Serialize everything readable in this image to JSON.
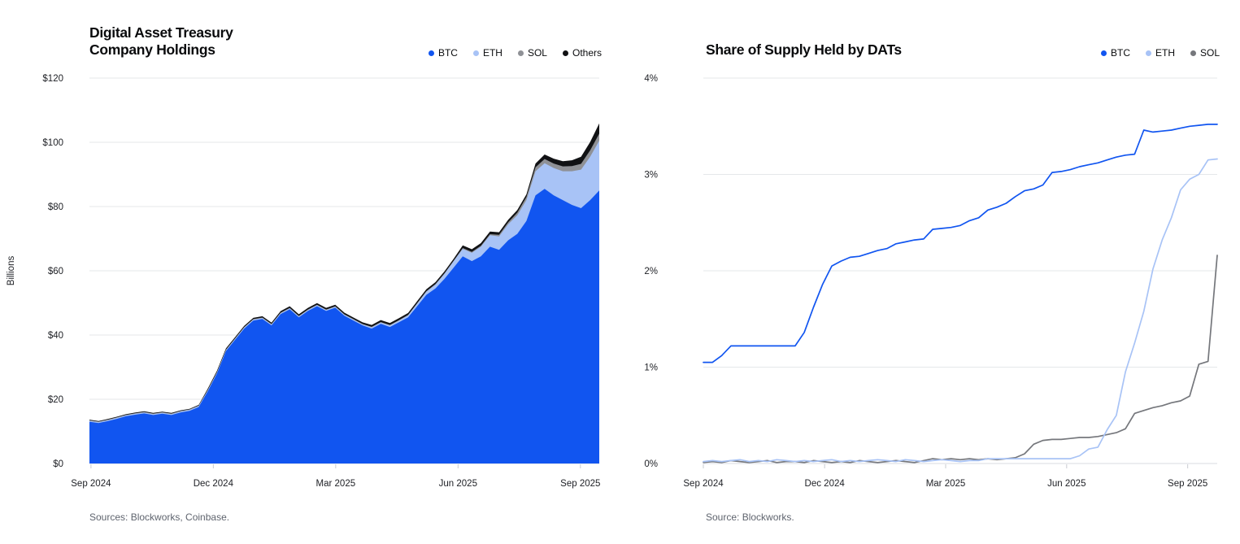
{
  "page": {
    "background": "#ffffff",
    "grid_color": "#e5e7ea",
    "axis_color": "#d8dbe0",
    "tick_color": "#c9ccd2"
  },
  "chart_data": [
    {
      "id": "dat-holdings",
      "type": "area",
      "stacked": true,
      "title_lines": [
        "Digital Asset Treasury",
        "Company Holdings"
      ],
      "ylabel": "Billions",
      "source": "Sources: Blockworks, Coinbase.",
      "legend_position": "top-right",
      "grid": true,
      "x_tick_labels": [
        "Sep 2024",
        "Dec 2024",
        "Mar 2025",
        "Jun 2025",
        "Sep 2025"
      ],
      "y_tick_labels": [
        "$120",
        "$100",
        "$80",
        "$60",
        "$40",
        "$20",
        "$0"
      ],
      "y_tick_values": [
        120,
        100,
        80,
        60,
        40,
        20,
        0
      ],
      "ylim": [
        0,
        120
      ],
      "x_range": [
        "Sep 2024",
        "mid-Sep 2025"
      ],
      "series": [
        {
          "name": "BTC",
          "color": "#1155f0",
          "values": [
            13.0,
            12.6,
            13.2,
            13.9,
            14.7,
            15.2,
            15.6,
            15.1,
            15.5,
            15.1,
            15.9,
            16.4,
            17.6,
            22.5,
            28.0,
            35.0,
            38.5,
            42.0,
            44.5,
            45.0,
            43.0,
            46.5,
            48.0,
            45.5,
            47.5,
            49.0,
            47.5,
            48.5,
            46.0,
            44.5,
            43.0,
            42.0,
            43.5,
            42.5,
            44.0,
            45.5,
            49.0,
            52.5,
            54.5,
            57.5,
            61.0,
            64.5,
            63.0,
            64.5,
            67.5,
            66.5,
            69.5,
            71.5,
            75.5,
            83.5,
            85.5,
            83.5,
            82.0,
            80.5,
            79.5,
            82.0,
            85.0
          ]
        },
        {
          "name": "ETH",
          "color": "#a8c3f6",
          "values": [
            0.3,
            0.3,
            0.3,
            0.3,
            0.3,
            0.3,
            0.3,
            0.3,
            0.3,
            0.3,
            0.3,
            0.3,
            0.3,
            0.3,
            0.3,
            0.3,
            0.3,
            0.3,
            0.3,
            0.3,
            0.3,
            0.3,
            0.3,
            0.3,
            0.3,
            0.3,
            0.3,
            0.3,
            0.3,
            0.3,
            0.3,
            0.4,
            0.4,
            0.5,
            0.5,
            0.6,
            0.8,
            1.0,
            1.2,
            1.6,
            2.0,
            2.3,
            2.6,
            3.0,
            3.6,
            4.2,
            5.0,
            5.8,
            6.5,
            7.5,
            8.0,
            8.5,
            9.0,
            10.5,
            12.0,
            13.5,
            15.5
          ]
        },
        {
          "name": "SOL",
          "color": "#8f9196",
          "values": [
            0.15,
            0.15,
            0.15,
            0.15,
            0.15,
            0.15,
            0.15,
            0.15,
            0.15,
            0.15,
            0.15,
            0.15,
            0.15,
            0.15,
            0.15,
            0.15,
            0.15,
            0.15,
            0.15,
            0.15,
            0.15,
            0.15,
            0.15,
            0.15,
            0.15,
            0.15,
            0.15,
            0.15,
            0.15,
            0.15,
            0.15,
            0.15,
            0.15,
            0.15,
            0.15,
            0.15,
            0.15,
            0.15,
            0.15,
            0.15,
            0.15,
            0.3,
            0.3,
            0.3,
            0.3,
            0.5,
            0.6,
            0.8,
            1.0,
            1.2,
            1.3,
            1.4,
            1.5,
            1.6,
            1.8,
            2.0,
            2.2
          ]
        },
        {
          "name": "Others",
          "color": "#111214",
          "values": [
            0.2,
            0.2,
            0.2,
            0.2,
            0.2,
            0.2,
            0.2,
            0.2,
            0.2,
            0.2,
            0.2,
            0.2,
            0.2,
            0.4,
            0.4,
            0.4,
            0.4,
            0.4,
            0.4,
            0.4,
            0.4,
            0.5,
            0.5,
            0.5,
            0.5,
            0.5,
            0.5,
            0.5,
            0.5,
            0.5,
            0.5,
            0.6,
            0.6,
            0.6,
            0.6,
            0.6,
            0.6,
            0.6,
            0.6,
            0.6,
            0.6,
            0.8,
            0.8,
            0.8,
            0.8,
            0.8,
            0.8,
            0.8,
            0.8,
            1.2,
            1.4,
            1.5,
            1.6,
            1.8,
            2.2,
            2.6,
            3.2
          ]
        }
      ]
    },
    {
      "id": "supply-share",
      "type": "line",
      "stacked": false,
      "title_lines": [
        "Share of Supply Held by DATs"
      ],
      "source": "Source: Blockworks.",
      "legend_position": "top-right",
      "grid": true,
      "x_tick_labels": [
        "Sep 2024",
        "Dec 2024",
        "Mar 2025",
        "Jun 2025",
        "Sep 2025"
      ],
      "y_tick_labels": [
        "4%",
        "3%",
        "2%",
        "1%",
        "0%"
      ],
      "y_tick_values": [
        4,
        3,
        2,
        1,
        0
      ],
      "ylim": [
        0,
        4
      ],
      "x_range": [
        "Sep 2024",
        "mid-Sep 2025"
      ],
      "series": [
        {
          "name": "BTC",
          "color": "#1155f0",
          "values": [
            1.05,
            1.05,
            1.12,
            1.22,
            1.22,
            1.22,
            1.22,
            1.22,
            1.22,
            1.22,
            1.22,
            1.36,
            1.62,
            1.86,
            2.05,
            2.1,
            2.14,
            2.15,
            2.18,
            2.21,
            2.23,
            2.28,
            2.3,
            2.32,
            2.33,
            2.43,
            2.44,
            2.45,
            2.47,
            2.52,
            2.55,
            2.63,
            2.66,
            2.7,
            2.77,
            2.83,
            2.85,
            2.89,
            3.02,
            3.03,
            3.05,
            3.08,
            3.1,
            3.12,
            3.15,
            3.18,
            3.2,
            3.21,
            3.46,
            3.44,
            3.45,
            3.46,
            3.48,
            3.5,
            3.51,
            3.52,
            3.52
          ]
        },
        {
          "name": "ETH",
          "color": "#a8c3f6",
          "values": [
            0.02,
            0.03,
            0.02,
            0.03,
            0.04,
            0.02,
            0.03,
            0.02,
            0.04,
            0.03,
            0.02,
            0.03,
            0.02,
            0.03,
            0.04,
            0.02,
            0.03,
            0.02,
            0.03,
            0.04,
            0.03,
            0.02,
            0.04,
            0.03,
            0.02,
            0.03,
            0.04,
            0.03,
            0.02,
            0.03,
            0.03,
            0.05,
            0.05,
            0.05,
            0.05,
            0.05,
            0.05,
            0.05,
            0.05,
            0.05,
            0.05,
            0.08,
            0.15,
            0.17,
            0.35,
            0.5,
            0.95,
            1.25,
            1.58,
            2.02,
            2.32,
            2.55,
            2.84,
            2.95,
            3.0,
            3.15,
            3.16
          ]
        },
        {
          "name": "SOL",
          "color": "#75777c",
          "values": [
            0.01,
            0.02,
            0.01,
            0.03,
            0.02,
            0.01,
            0.02,
            0.03,
            0.01,
            0.02,
            0.02,
            0.01,
            0.03,
            0.02,
            0.01,
            0.02,
            0.01,
            0.03,
            0.02,
            0.01,
            0.02,
            0.03,
            0.02,
            0.01,
            0.03,
            0.05,
            0.04,
            0.05,
            0.04,
            0.05,
            0.04,
            0.05,
            0.04,
            0.05,
            0.06,
            0.1,
            0.2,
            0.24,
            0.25,
            0.25,
            0.26,
            0.27,
            0.27,
            0.28,
            0.3,
            0.32,
            0.36,
            0.52,
            0.55,
            0.58,
            0.6,
            0.63,
            0.65,
            0.7,
            1.03,
            1.06,
            2.16
          ]
        }
      ]
    }
  ]
}
